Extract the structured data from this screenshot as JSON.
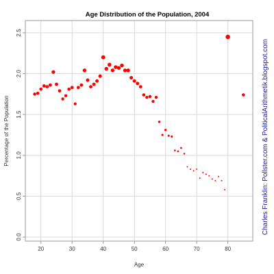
{
  "chart_data": {
    "type": "scatter",
    "title": "Age Distribution of the Population, 2004",
    "xlabel": "Age",
    "ylabel": "Percentage of the Population",
    "xlim": [
      15,
      88
    ],
    "ylim": [
      -0.05,
      2.65
    ],
    "x_ticks": [
      20,
      30,
      40,
      50,
      60,
      70,
      80
    ],
    "y_ticks": [
      0.0,
      0.5,
      1.0,
      1.5,
      2.0,
      2.5
    ],
    "x_tick_labels": [
      "20",
      "30",
      "40",
      "50",
      "60",
      "70",
      "80"
    ],
    "y_tick_labels": [
      "0.0",
      "0.5",
      "1.0",
      "1.5",
      "2.0",
      "2.5"
    ],
    "grid": true,
    "marker_color": "#ff0000",
    "marker_size_note": "marker radius grows with the value",
    "points": [
      {
        "x": 18,
        "y": 1.75
      },
      {
        "x": 19,
        "y": 1.76
      },
      {
        "x": 20,
        "y": 1.81
      },
      {
        "x": 21,
        "y": 1.85
      },
      {
        "x": 22,
        "y": 1.84
      },
      {
        "x": 23,
        "y": 1.86
      },
      {
        "x": 24,
        "y": 2.02
      },
      {
        "x": 25,
        "y": 1.87
      },
      {
        "x": 26,
        "y": 1.79
      },
      {
        "x": 27,
        "y": 1.69
      },
      {
        "x": 28,
        "y": 1.73
      },
      {
        "x": 29,
        "y": 1.81
      },
      {
        "x": 30,
        "y": 1.83
      },
      {
        "x": 31,
        "y": 1.63
      },
      {
        "x": 32,
        "y": 1.83
      },
      {
        "x": 33,
        "y": 1.86
      },
      {
        "x": 34,
        "y": 2.04
      },
      {
        "x": 35,
        "y": 1.92
      },
      {
        "x": 36,
        "y": 1.84
      },
      {
        "x": 37,
        "y": 1.87
      },
      {
        "x": 38,
        "y": 1.91
      },
      {
        "x": 39,
        "y": 1.97
      },
      {
        "x": 40,
        "y": 2.2
      },
      {
        "x": 41,
        "y": 2.06
      },
      {
        "x": 42,
        "y": 2.11
      },
      {
        "x": 43,
        "y": 2.04
      },
      {
        "x": 44,
        "y": 2.08
      },
      {
        "x": 45,
        "y": 2.07
      },
      {
        "x": 46,
        "y": 2.1
      },
      {
        "x": 47,
        "y": 2.04
      },
      {
        "x": 48,
        "y": 2.04
      },
      {
        "x": 49,
        "y": 1.95
      },
      {
        "x": 50,
        "y": 1.91
      },
      {
        "x": 51,
        "y": 1.88
      },
      {
        "x": 52,
        "y": 1.84
      },
      {
        "x": 53,
        "y": 1.74
      },
      {
        "x": 54,
        "y": 1.71
      },
      {
        "x": 55,
        "y": 1.72
      },
      {
        "x": 56,
        "y": 1.66
      },
      {
        "x": 57,
        "y": 1.71
      },
      {
        "x": 58,
        "y": 1.41
      },
      {
        "x": 59,
        "y": 1.25
      },
      {
        "x": 60,
        "y": 1.31
      },
      {
        "x": 61,
        "y": 1.24
      },
      {
        "x": 62,
        "y": 1.23
      },
      {
        "x": 63,
        "y": 1.06
      },
      {
        "x": 64,
        "y": 1.05
      },
      {
        "x": 65,
        "y": 1.09
      },
      {
        "x": 66,
        "y": 1.02
      },
      {
        "x": 67,
        "y": 0.86
      },
      {
        "x": 68,
        "y": 0.83
      },
      {
        "x": 69,
        "y": 0.81
      },
      {
        "x": 70,
        "y": 0.83
      },
      {
        "x": 71,
        "y": 0.72
      },
      {
        "x": 72,
        "y": 0.79
      },
      {
        "x": 73,
        "y": 0.77
      },
      {
        "x": 74,
        "y": 0.75
      },
      {
        "x": 75,
        "y": 0.71
      },
      {
        "x": 76,
        "y": 0.69
      },
      {
        "x": 77,
        "y": 0.74
      },
      {
        "x": 78,
        "y": 0.69
      },
      {
        "x": 79,
        "y": 0.58
      },
      {
        "x": 80,
        "y": 2.45
      },
      {
        "x": 85,
        "y": 1.74
      }
    ]
  },
  "credit": {
    "text": "Charles Franklin: Pollster.com & PoliticalArithmetik.blogspot.com",
    "color": "#1a1aa8"
  }
}
